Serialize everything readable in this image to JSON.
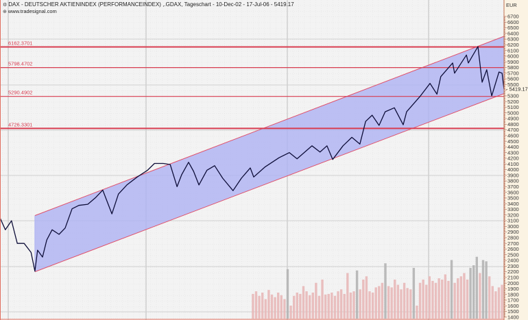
{
  "header": {
    "title": "DAX  - DEUTSCHER AKTIENINDEX (PERFORMANCEINDEX) ,.GDAX, Tageschart - 10-Dec-02 - 17-Jul-06 - 5419.17",
    "source": "www.tradesignal.com",
    "title_icon": "chart-settings-icon",
    "source_icon": "globe-icon"
  },
  "colors": {
    "plot_background": "#f3f3f3",
    "axis_background": "#fbf3e3",
    "channel_fill": "#aeb2f2",
    "channel_line": "#e0506a",
    "level_line": "#d83c50",
    "price_line": "#0d0d38",
    "volume_bar": "#e8b8b8",
    "volume_spike": "#b4b4b4"
  },
  "chart_data": {
    "type": "line",
    "title": "DAX  - DEUTSCHER AKTIENINDEX (PERFORMANCEINDEX) ,.GDAX, Tageschart - 10-Dec-02 - 17-Jul-06 - 5419.17",
    "ylabel": "EUR",
    "xlim": [
      "2002-12-10",
      "2006-07-17"
    ],
    "ylim": [
      1400,
      6700
    ],
    "y_ticks": [
      6700,
      6600,
      6500,
      6400,
      6300,
      6200,
      6100,
      6000,
      5900,
      5800,
      5700,
      5600,
      5500,
      5300,
      5200,
      5100,
      5000,
      4900,
      4800,
      4700,
      4600,
      4500,
      4400,
      4300,
      4200,
      4100,
      4000,
      3900,
      3800,
      3700,
      3600,
      3500,
      3400,
      3300,
      3200,
      3100,
      3000,
      2900,
      2800,
      2700,
      2600,
      2500,
      2400,
      2300,
      2200,
      2100,
      2000,
      1900,
      1800,
      1700,
      1600,
      1500,
      1400
    ],
    "y_axis_side": "right",
    "grid": true,
    "last_price": "5419.17",
    "series": [
      {
        "points": [
          [
            "2002-12-10",
            3150
          ],
          [
            "2002-12-24",
            2940
          ],
          [
            "2003-01-09",
            3100
          ],
          [
            "2003-01-24",
            2700
          ],
          [
            "2003-02-11",
            2700
          ],
          [
            "2003-03-01",
            2540
          ],
          [
            "2003-03-11",
            2210
          ],
          [
            "2003-03-18",
            2580
          ],
          [
            "2003-03-31",
            2460
          ],
          [
            "2003-04-11",
            2760
          ],
          [
            "2003-04-25",
            2940
          ],
          [
            "2003-05-13",
            2860
          ],
          [
            "2003-05-29",
            2970
          ],
          [
            "2003-06-16",
            3310
          ],
          [
            "2003-07-04",
            3370
          ],
          [
            "2003-07-27",
            3390
          ],
          [
            "2003-08-17",
            3510
          ],
          [
            "2003-09-04",
            3640
          ],
          [
            "2003-09-28",
            3220
          ],
          [
            "2003-10-15",
            3570
          ],
          [
            "2003-11-06",
            3730
          ],
          [
            "2003-12-03",
            3870
          ],
          [
            "2003-12-30",
            3990
          ],
          [
            "2004-01-17",
            4110
          ],
          [
            "2004-02-09",
            4110
          ],
          [
            "2004-02-27",
            4090
          ],
          [
            "2004-03-16",
            3700
          ],
          [
            "2004-03-28",
            3910
          ],
          [
            "2004-04-15",
            4130
          ],
          [
            "2004-04-28",
            3970
          ],
          [
            "2004-05-12",
            3730
          ],
          [
            "2004-06-02",
            3990
          ],
          [
            "2004-06-22",
            4070
          ],
          [
            "2004-07-13",
            3850
          ],
          [
            "2004-08-09",
            3630
          ],
          [
            "2004-08-31",
            3850
          ],
          [
            "2004-09-23",
            4030
          ],
          [
            "2004-10-02",
            3870
          ],
          [
            "2004-11-01",
            4050
          ],
          [
            "2004-12-07",
            4210
          ],
          [
            "2005-01-03",
            4300
          ],
          [
            "2005-01-23",
            4190
          ],
          [
            "2005-03-03",
            4420
          ],
          [
            "2005-03-24",
            4310
          ],
          [
            "2005-04-11",
            4420
          ],
          [
            "2005-04-26",
            4180
          ],
          [
            "2005-05-23",
            4420
          ],
          [
            "2005-06-15",
            4570
          ],
          [
            "2005-07-06",
            4450
          ],
          [
            "2005-07-21",
            4850
          ],
          [
            "2005-08-07",
            4960
          ],
          [
            "2005-08-25",
            4780
          ],
          [
            "2005-09-10",
            5020
          ],
          [
            "2005-10-04",
            5090
          ],
          [
            "2005-10-27",
            4790
          ],
          [
            "2005-11-05",
            5020
          ],
          [
            "2005-12-11",
            5300
          ],
          [
            "2006-01-05",
            5520
          ],
          [
            "2006-01-23",
            5330
          ],
          [
            "2006-02-02",
            5640
          ],
          [
            "2006-03-05",
            5880
          ],
          [
            "2006-03-10",
            5700
          ],
          [
            "2006-04-10",
            6020
          ],
          [
            "2006-04-15",
            5880
          ],
          [
            "2006-05-10",
            6170
          ],
          [
            "2006-05-21",
            5540
          ],
          [
            "2006-06-02",
            5760
          ],
          [
            "2006-06-15",
            5300
          ],
          [
            "2006-07-04",
            5720
          ],
          [
            "2006-07-12",
            5700
          ],
          [
            "2006-07-17",
            5419.17
          ]
        ]
      }
    ],
    "trend_channel": {
      "start_date": "2003-03-11",
      "end_date": "2006-07-17",
      "upper": [
        3190,
        6350
      ],
      "lower": [
        2200,
        5340
      ]
    },
    "horizontal_levels": [
      {
        "label": "6162.3701",
        "value": 6162.3701
      },
      {
        "label": "5798.4702",
        "value": 5798.4702
      },
      {
        "label": "5290.4902",
        "value": 5290.4902
      },
      {
        "label": "4726.3301",
        "value": 4726.3301
      }
    ],
    "volume": {
      "start_date": "2004-09-27",
      "end_date": "2006-07-17",
      "relative": [
        0.38,
        0.42,
        0.35,
        0.4,
        0.3,
        0.44,
        0.37,
        0.33,
        0.4,
        0.36,
        0.3,
        0.76,
        0.2,
        0.35,
        0.4,
        0.38,
        0.5,
        0.42,
        0.36,
        0.4,
        0.55,
        0.35,
        0.6,
        0.37,
        0.38,
        0.4,
        0.35,
        0.42,
        0.45,
        0.38,
        0.7,
        0.4,
        0.42,
        0.74,
        0.45,
        0.6,
        0.65,
        0.42,
        0.4,
        0.48,
        0.5,
        0.55,
        0.85,
        0.5,
        0.48,
        0.6,
        0.52,
        0.45,
        0.55,
        0.47,
        0.45,
        0.78,
        0.2,
        0.55,
        0.6,
        0.52,
        0.65,
        0.58,
        0.55,
        0.62,
        0.6,
        0.68,
        0.58,
        0.9,
        0.55,
        0.62,
        0.65,
        0.7,
        0.6,
        0.78,
        0.82,
        0.95,
        0.7,
        0.9,
        0.88,
        0.65,
        0.5,
        0.42,
        0.48,
        0.52
      ]
    }
  }
}
